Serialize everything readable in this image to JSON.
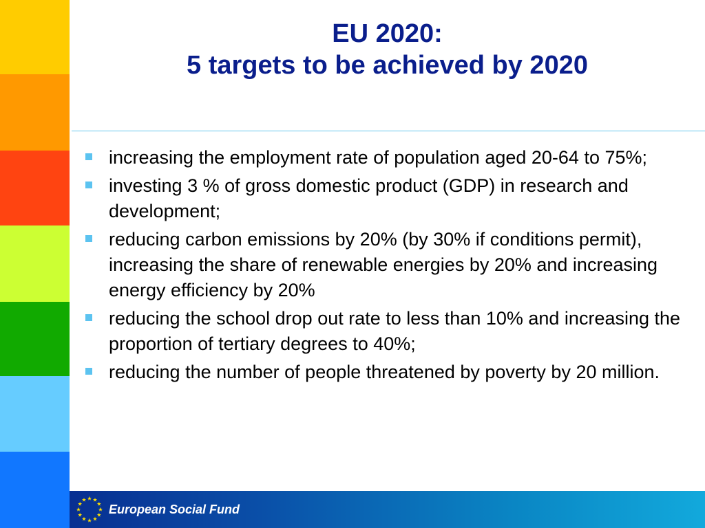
{
  "slide": {
    "title_line1": "EU 2020:",
    "title_line2": "5 targets to be achieved by 2020",
    "bullets": [
      "increasing the employment rate of population aged 20-64 to 75%;",
      "investing 3 % of gross domestic product (GDP) in research and development;",
      "reducing carbon emissions by 20% (by 30% if conditions permit), increasing the share of renewable energies by 20% and increasing energy efficiency by 20%",
      "reducing the school drop out rate to less than 10% and increasing the proportion of tertiary degrees to 40%;",
      "reducing the number of people threatened by poverty by 20 million."
    ]
  },
  "footer": {
    "label": "European Social Fund",
    "logo_icon": "eu-flag-icon"
  },
  "colors": {
    "title": "#0a1e8c",
    "bullet_marker": "#5cc3f0",
    "divider": "#66c6ec",
    "strip": [
      "#ffcc00",
      "#ff9900",
      "#ff4411",
      "#ccff33",
      "#11aa00",
      "#66ccff",
      "#1177ff"
    ]
  }
}
